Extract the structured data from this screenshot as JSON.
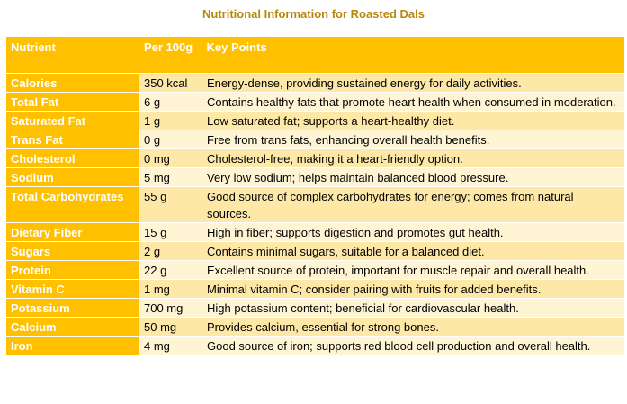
{
  "title": "Nutritional Information for Roasted Dals",
  "headers": [
    "Nutrient",
    "Per 100g",
    "Key Points"
  ],
  "rows": [
    {
      "nutrient": "Calories",
      "per100g": "350 kcal",
      "key": "Energy-dense, providing sustained energy for daily activities."
    },
    {
      "nutrient": "Total Fat",
      "per100g": "6 g",
      "key": "Contains healthy fats that promote heart health when consumed in moderation."
    },
    {
      "nutrient": "Saturated Fat",
      "per100g": "1 g",
      "key": "Low saturated fat; supports a heart-healthy diet."
    },
    {
      "nutrient": "Trans Fat",
      "per100g": "0 g",
      "key": "Free from trans fats, enhancing overall health benefits."
    },
    {
      "nutrient": "Cholesterol",
      "per100g": "0 mg",
      "key": "Cholesterol-free, making it a heart-friendly option."
    },
    {
      "nutrient": "Sodium",
      "per100g": "5 mg",
      "key": "Very low sodium; helps maintain balanced blood pressure."
    },
    {
      "nutrient": "Total Carbohydrates",
      "per100g": "55 g",
      "key": "Good source of complex carbohydrates for energy; comes from natural sources."
    },
    {
      "nutrient": "Dietary Fiber",
      "per100g": "15 g",
      "key": "High in fiber; supports digestion and promotes gut health."
    },
    {
      "nutrient": "Sugars",
      "per100g": "2 g",
      "key": "Contains minimal sugars, suitable for a balanced diet."
    },
    {
      "nutrient": "Protein",
      "per100g": "22 g",
      "key": "Excellent source of protein, important for muscle repair and overall health."
    },
    {
      "nutrient": "Vitamin C",
      "per100g": "1 mg",
      "key": "Minimal vitamin C; consider pairing with fruits for added benefits."
    },
    {
      "nutrient": "Potassium",
      "per100g": "700 mg",
      "key": "High potassium content; beneficial for cardiovascular health."
    },
    {
      "nutrient": "Calcium",
      "per100g": "50 mg",
      "key": "Provides calcium, essential for strong bones."
    },
    {
      "nutrient": "Iron",
      "per100g": "4 mg",
      "key": "Good source of iron; supports red blood cell production and overall health."
    }
  ],
  "colors": {
    "title": "#b8860b",
    "header_bg": "#ffc000",
    "row_odd": "#fde8a8",
    "row_even": "#fff4d3"
  }
}
